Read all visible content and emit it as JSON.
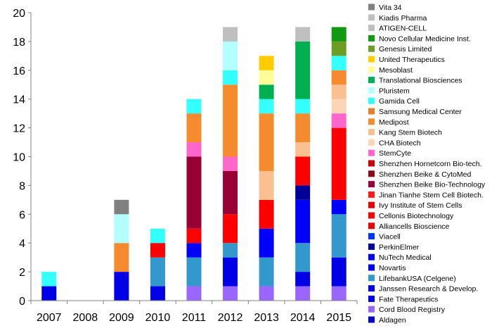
{
  "chart_data": {
    "type": "bar",
    "stacked": true,
    "title": "",
    "xlabel": "",
    "ylabel": "",
    "ylim": [
      0,
      20
    ],
    "yticks": [
      0,
      2,
      4,
      6,
      8,
      10,
      12,
      14,
      16,
      18,
      20
    ],
    "grid": false,
    "legend_position": "right",
    "categories": [
      "2007",
      "2008",
      "2009",
      "2010",
      "2011",
      "2012",
      "2013",
      "2014",
      "2015"
    ],
    "series": [
      {
        "name": "Aldagen",
        "color": "#0000cc",
        "values": [
          0,
          0,
          0,
          0,
          0,
          0,
          0,
          0,
          0
        ]
      },
      {
        "name": "Cord Blood Registry",
        "color": "#9966ff",
        "values": [
          0,
          0,
          0,
          0,
          1,
          1,
          1,
          1,
          1
        ]
      },
      {
        "name": "Fate Therapeutics",
        "color": "#0000e6",
        "values": [
          1,
          0,
          2,
          1,
          0,
          2,
          0,
          1,
          2
        ]
      },
      {
        "name": "Janssen Research & Develop.",
        "color": "#0000ee",
        "values": [
          0,
          0,
          0,
          0,
          0,
          0,
          0,
          0,
          0
        ]
      },
      {
        "name": "LifebankUSA (Celgene)",
        "color": "#3399cc",
        "values": [
          0,
          0,
          0,
          2,
          2,
          1,
          2,
          2,
          3
        ]
      },
      {
        "name": "Novartis",
        "color": "#0000f0",
        "values": [
          0,
          0,
          0,
          0,
          0,
          0,
          0,
          0,
          0
        ]
      },
      {
        "name": "NuTech Medical",
        "color": "#0000ff",
        "values": [
          0,
          0,
          0,
          0,
          1,
          0,
          2,
          3,
          1
        ]
      },
      {
        "name": "PerkinElmer",
        "color": "#000099",
        "values": [
          0,
          0,
          0,
          0,
          0,
          0,
          0,
          1,
          0
        ]
      },
      {
        "name": "Viacell",
        "color": "#0033ff",
        "values": [
          0,
          0,
          0,
          0,
          0,
          0,
          0,
          0,
          0
        ]
      },
      {
        "name": "Alliancells Bioscience",
        "color": "#ee0000",
        "values": [
          0,
          0,
          0,
          0,
          0,
          0,
          0,
          0,
          0
        ]
      },
      {
        "name": "Cellonis Biotechnology",
        "color": "#ff0000",
        "values": [
          0,
          0,
          0,
          1,
          1,
          2,
          2,
          2,
          5
        ]
      },
      {
        "name": "Ivy Institute of Stem Cells",
        "color": "#e60000",
        "values": [
          0,
          0,
          0,
          0,
          0,
          0,
          0,
          0,
          0
        ]
      },
      {
        "name": "Jinan Tianhe Stem Cell Biotech.",
        "color": "#ff1a1a",
        "values": [
          0,
          0,
          0,
          0,
          0,
          0,
          0,
          0,
          0
        ]
      },
      {
        "name": "Shenzhen Beike Bio-Technology",
        "color": "#990033",
        "values": [
          0,
          0,
          0,
          0,
          5,
          3,
          0,
          0,
          0
        ]
      },
      {
        "name": "Shenzhen Beike & CytoMed",
        "color": "#8b0a1a",
        "values": [
          0,
          0,
          0,
          0,
          0,
          0,
          0,
          0,
          0
        ]
      },
      {
        "name": "Shenzhen Hornetcorn Bio-tech.",
        "color": "#cc0000",
        "values": [
          0,
          0,
          0,
          0,
          0,
          0,
          0,
          0,
          0
        ]
      },
      {
        "name": "StemCyte",
        "color": "#ff66cc",
        "values": [
          0,
          0,
          0,
          0,
          1,
          1,
          0,
          0,
          1
        ]
      },
      {
        "name": "CHA Biotech",
        "color": "#fcd5b4",
        "values": [
          0,
          0,
          0,
          0,
          0,
          0,
          0,
          0,
          1
        ]
      },
      {
        "name": "Kang Stem Biotech",
        "color": "#fac090",
        "values": [
          0,
          0,
          0,
          0,
          0,
          0,
          2,
          1,
          1
        ]
      },
      {
        "name": "Medipost",
        "color": "#f58a2e",
        "values": [
          0,
          0,
          2,
          0,
          2,
          5,
          4,
          2,
          1
        ]
      },
      {
        "name": "Samsung Medical Center",
        "color": "#e87e2a",
        "values": [
          0,
          0,
          0,
          0,
          0,
          0,
          0,
          0,
          0
        ]
      },
      {
        "name": "Gamida Cell",
        "color": "#33ffff",
        "values": [
          1,
          0,
          0,
          1,
          1,
          1,
          1,
          1,
          1
        ]
      },
      {
        "name": "Pluristem",
        "color": "#b3ffff",
        "values": [
          0,
          0,
          2,
          0,
          0,
          2,
          0,
          0,
          0
        ]
      },
      {
        "name": "Translational Biosciences",
        "color": "#00b050",
        "values": [
          0,
          0,
          0,
          0,
          0,
          0,
          1,
          4,
          0
        ]
      },
      {
        "name": "Mesoblast",
        "color": "#ffff99",
        "values": [
          0,
          0,
          0,
          0,
          0,
          0,
          1,
          0,
          0
        ]
      },
      {
        "name": "United Therapeutics",
        "color": "#ffcc00",
        "values": [
          0,
          0,
          0,
          0,
          0,
          0,
          1,
          0,
          0
        ]
      },
      {
        "name": "Genesis Limited",
        "color": "#6b9e23",
        "values": [
          0,
          0,
          0,
          0,
          0,
          0,
          0,
          0,
          1
        ]
      },
      {
        "name": "Novo Cellular Medicine Inst.",
        "color": "#119911",
        "values": [
          0,
          0,
          0,
          0,
          0,
          0,
          0,
          0,
          1
        ]
      },
      {
        "name": "ATIGEN-CELL",
        "color": "#bfbfbf",
        "values": [
          0,
          0,
          0,
          0,
          0,
          1,
          0,
          1,
          0
        ]
      },
      {
        "name": "Kiadis Pharma",
        "color": "#c0c0c0",
        "values": [
          0,
          0,
          0,
          0,
          0,
          0,
          0,
          0,
          0
        ]
      },
      {
        "name": "Vita 34",
        "color": "#808080",
        "values": [
          0,
          0,
          1,
          0,
          0,
          0,
          0,
          0,
          0
        ]
      }
    ]
  }
}
